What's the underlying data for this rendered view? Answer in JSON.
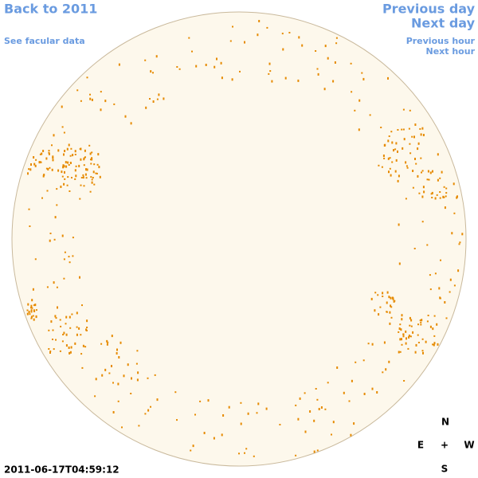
{
  "links": {
    "back": "Back to 2011",
    "facular": "See facular data",
    "previous_day": "Previous day",
    "next_day": "Next day",
    "previous_hour": "Previous hour",
    "next_hour": "Next hour"
  },
  "timestamp": "2011-06-17T04:59:12",
  "compass": {
    "north": "N",
    "east": "E",
    "center": "+",
    "west": "W",
    "south": "S"
  }
}
